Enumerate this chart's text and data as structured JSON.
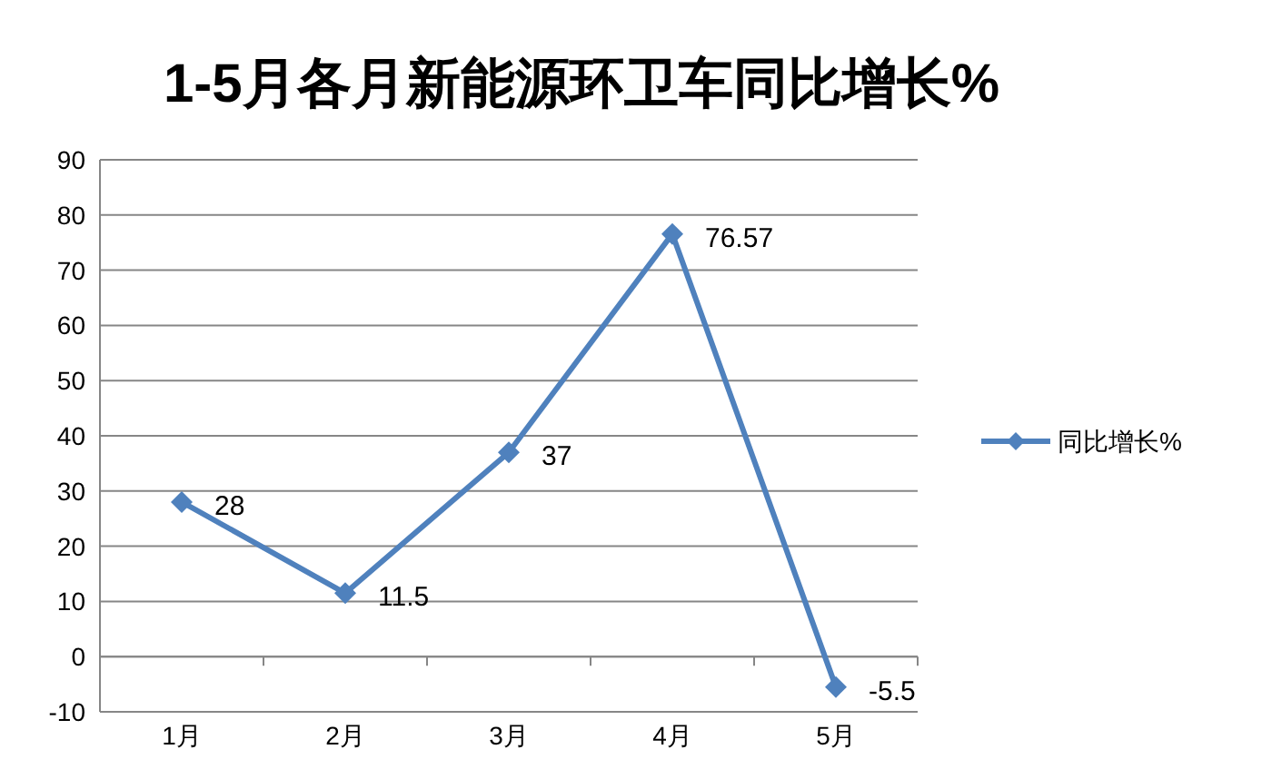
{
  "chart_data": {
    "type": "line",
    "title": "1-5月各月新能源环卫车同比增长%",
    "categories": [
      "1月",
      "2月",
      "3月",
      "4月",
      "5月"
    ],
    "series": [
      {
        "name": "同比增长%",
        "color": "#4f81bd",
        "values": [
          28,
          11.5,
          37,
          76.57,
          -5.5
        ]
      }
    ],
    "ylim": [
      -10,
      90
    ],
    "yticks": [
      -10,
      0,
      10,
      20,
      30,
      40,
      50,
      60,
      70,
      80,
      90
    ],
    "grid": "y",
    "legend": "right",
    "marker": "diamond",
    "data_labels": true
  }
}
